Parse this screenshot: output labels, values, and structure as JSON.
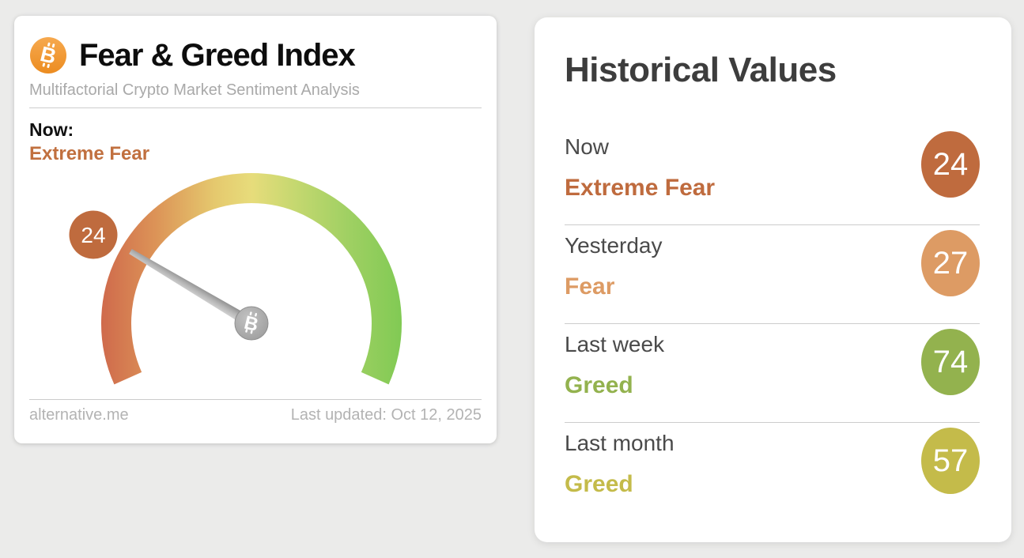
{
  "page": {
    "background_color": "#ebebea"
  },
  "gauge_card": {
    "title": "Fear & Greed Index",
    "subtitle": "Multifactorial Crypto Market Sentiment Analysis",
    "now_label": "Now:",
    "now_classification": "Extreme Fear",
    "now_value": "24",
    "classification_color": "#c1703f",
    "value_badge_color": "#bf6b3e",
    "footer_source": "alternative.me",
    "footer_updated": "Last updated: Oct 12, 2025"
  },
  "historical_card": {
    "title": "Historical Values",
    "rows": [
      {
        "label": "Now",
        "classification": "Extreme Fear",
        "value": "24",
        "color": "#bf6b3e"
      },
      {
        "label": "Yesterday",
        "classification": "Fear",
        "value": "27",
        "color": "#dd9b64"
      },
      {
        "label": "Last week",
        "classification": "Greed",
        "value": "74",
        "color": "#93b24e"
      },
      {
        "label": "Last month",
        "classification": "Greed",
        "value": "57",
        "color": "#c4bb4a"
      }
    ]
  },
  "chart_data": {
    "type": "gauge",
    "title": "Fear & Greed Index",
    "value": 24,
    "range": [
      0,
      100
    ],
    "classification": "Extreme Fear",
    "arc_sweep_degrees": 228,
    "gradient_colors": [
      "#cf6a4c",
      "#dc9357",
      "#e7dc7b",
      "#a4d166",
      "#81ca54"
    ],
    "needle_color": "#a8a8a8",
    "historical": [
      {
        "period": "Now",
        "value": 24,
        "classification": "Extreme Fear"
      },
      {
        "period": "Yesterday",
        "value": 27,
        "classification": "Fear"
      },
      {
        "period": "Last week",
        "value": 74,
        "classification": "Greed"
      },
      {
        "period": "Last month",
        "value": 57,
        "classification": "Greed"
      }
    ]
  }
}
